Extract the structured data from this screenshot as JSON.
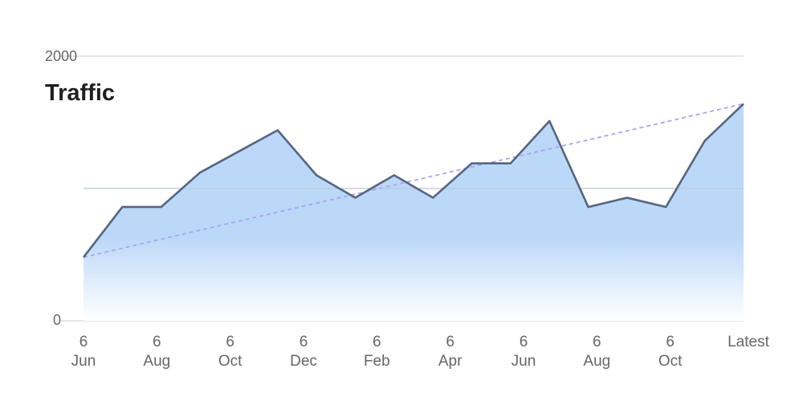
{
  "chart_data": {
    "type": "area",
    "title": "Traffic",
    "xlabel": "",
    "ylabel": "",
    "ylim": [
      0,
      2000
    ],
    "y_ticks": [
      "2000",
      "0"
    ],
    "grid": true,
    "legend": "none",
    "x_ticks": [
      {
        "top": "6",
        "bottom": "Jun"
      },
      {
        "top": "6",
        "bottom": "Aug"
      },
      {
        "top": "6",
        "bottom": "Oct"
      },
      {
        "top": "6",
        "bottom": "Dec"
      },
      {
        "top": "6",
        "bottom": "Feb"
      },
      {
        "top": "6",
        "bottom": "Apr"
      },
      {
        "top": "6",
        "bottom": "Jun"
      },
      {
        "top": "6",
        "bottom": "Aug"
      },
      {
        "top": "6",
        "bottom": "Oct"
      },
      {
        "top": "Latest",
        "bottom": ""
      }
    ],
    "values": [
      480,
      860,
      860,
      1120,
      1280,
      1440,
      1100,
      930,
      1100,
      930,
      1190,
      1190,
      1510,
      860,
      930,
      860,
      1360,
      1640
    ],
    "trendline": {
      "start": 480,
      "end": 1640
    },
    "colors": {
      "line": "#56657f",
      "fill_top": "#bcd8f8",
      "fill_bottom": "#ffffff",
      "trend": "#a6a6f2",
      "grid": "#dddddd",
      "mid_grid": "#bcc8d8"
    }
  }
}
